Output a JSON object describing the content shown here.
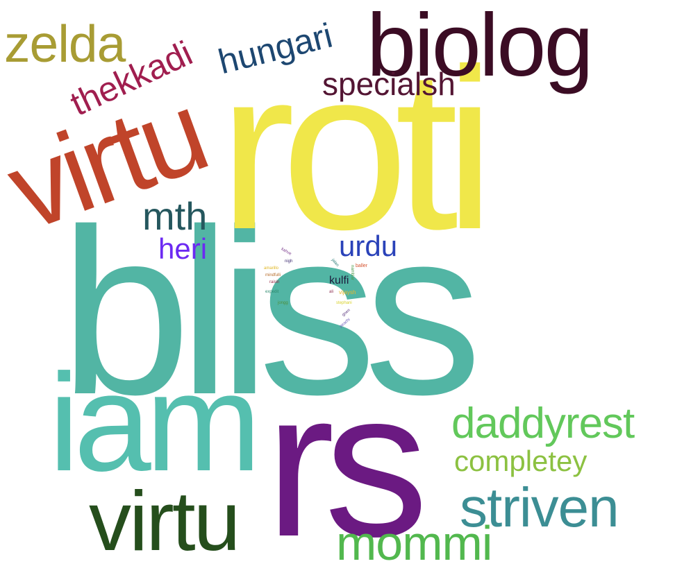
{
  "words": [
    {
      "text": "bliss",
      "color": "#52b5a4"
    },
    {
      "text": "roti",
      "color": "#f0e74a"
    },
    {
      "text": "rs",
      "color": "#6b1a82"
    },
    {
      "text": "iam",
      "color": "#55bfaf"
    },
    {
      "text": "virtu",
      "color": "#c0442a"
    },
    {
      "text": "biolog",
      "color": "#3b0c24"
    },
    {
      "text": "virtu",
      "color": "#254e1c"
    },
    {
      "text": "daddyrest",
      "color": "#62c85b"
    },
    {
      "text": "striven",
      "color": "#3c8e94"
    },
    {
      "text": "mommi",
      "color": "#52b84e"
    },
    {
      "text": "zelda",
      "color": "#a89c34"
    },
    {
      "text": "completey",
      "color": "#8cc141"
    },
    {
      "text": "hungari",
      "color": "#1d4771"
    },
    {
      "text": "specialsh",
      "color": "#531533"
    },
    {
      "text": "thekkadi",
      "color": "#a01e4f"
    },
    {
      "text": "mth",
      "color": "#25575e"
    },
    {
      "text": "heri",
      "color": "#6c2af2"
    },
    {
      "text": "urdu",
      "color": "#2a42b9"
    },
    {
      "text": "kulfi",
      "color": "#1c1c3c"
    },
    {
      "text": "baller",
      "color": "#d4512c"
    },
    {
      "text": "vijaysh",
      "color": "#e7b92c"
    },
    {
      "text": "stephani",
      "color": "#d8d22a"
    },
    {
      "text": "expedit",
      "color": "#2d8a6e"
    },
    {
      "text": "goen",
      "color": "#5d3a80"
    },
    {
      "text": "peachi",
      "color": "#6a58b8"
    },
    {
      "text": "jongg",
      "color": "#4e8f3c"
    },
    {
      "text": "ali",
      "color": "#8d2f52"
    },
    {
      "text": "jalan",
      "color": "#2a7c78"
    },
    {
      "text": "kahve",
      "color": "#7c3b8e"
    },
    {
      "text": "nigh",
      "color": "#3d2b70"
    },
    {
      "text": "amarillo",
      "color": "#e0b622"
    },
    {
      "text": "mindfulli",
      "color": "#b66d2a"
    },
    {
      "text": "raisin",
      "color": "#9c2c48"
    },
    {
      "text": "nambiar",
      "color": "#4b9a4a"
    }
  ]
}
